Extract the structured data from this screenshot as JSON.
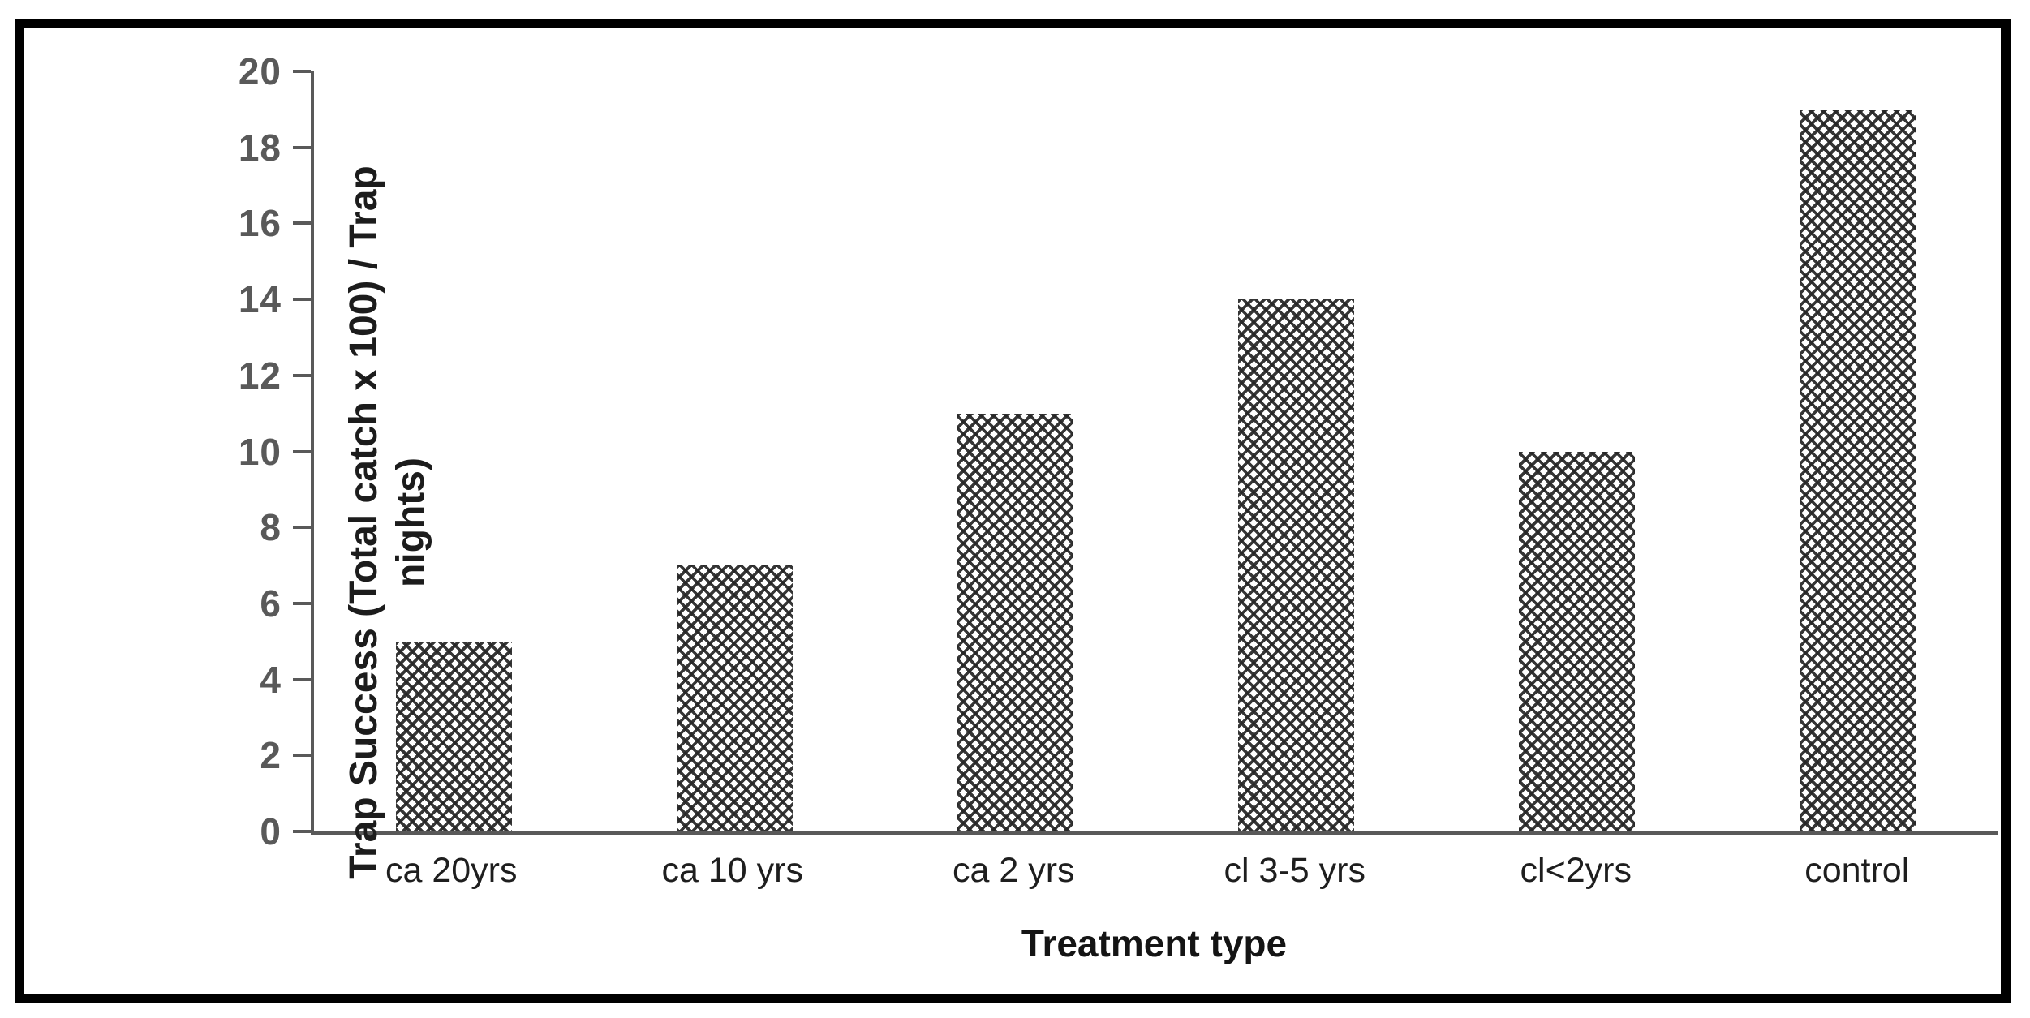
{
  "figure": {
    "background_color": "#ffffff",
    "frame_color": "#000000"
  },
  "chart_data": {
    "type": "bar",
    "title": "",
    "categories": [
      "ca 20yrs",
      "ca 10 yrs",
      "ca 2 yrs",
      "cl 3-5 yrs",
      "cl<2yrs",
      "control"
    ],
    "values": [
      5,
      7,
      11,
      14,
      10,
      19
    ],
    "xlabel": "Treatment type",
    "ylabel": "Trap Success (Total catch x 100) / Trap nights)",
    "ylabel_line1": "Trap Success (Total catch x 100) / Trap",
    "ylabel_line2": "nights)",
    "ylim": [
      0,
      20
    ],
    "yticks": [
      0,
      2,
      4,
      6,
      8,
      10,
      12,
      14,
      16,
      18,
      20
    ],
    "grid": false,
    "legend_position": "none",
    "bar_fill": "diagonal-crosshatch-pattern",
    "colors": {
      "axis": "#595959",
      "tick_labels": "#595959",
      "category_labels": "#1e1e1e",
      "axis_titles": "#1c1c1c",
      "bar_pattern": "#262626",
      "frame": "#000000",
      "background": "#ffffff"
    }
  }
}
